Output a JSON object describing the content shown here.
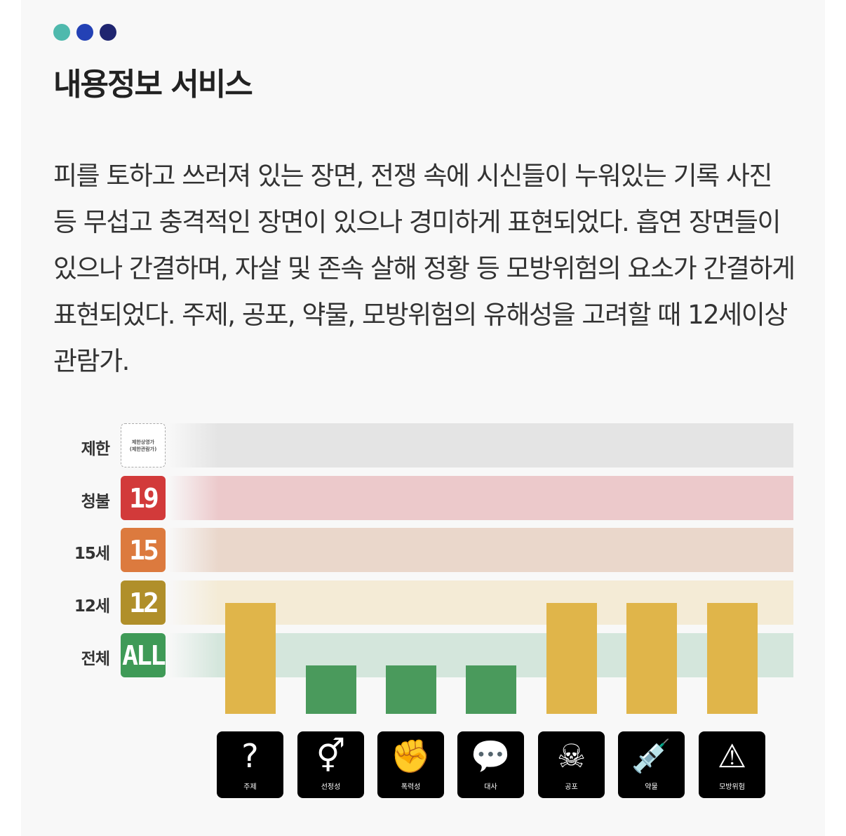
{
  "header": {
    "dot_colors": [
      "#4fb9ad",
      "#2341b5",
      "#1f2570"
    ],
    "title": "내용정보 서비스"
  },
  "description": "피를 토하고 쓰러져 있는 장면, 전쟁 속에 시신들이 누워있는 기록 사진 등 무섭고 충격적인 장면이 있으나 경미하게 표현되었다. 흡연 장면들이 있으나 간결하며, 자살 및 존속 살해 정황 등 모방위험의 요소가 간결하게 표현되었다. 주제, 공포, 약물, 모방위험의 유해성을 고려할 때 12세이상관람가.",
  "levels": [
    {
      "label": "제한",
      "badge_line1": "제한상영가",
      "badge_line2": "(제한관람가)",
      "color": "#ffffff",
      "band": "#e4e4e4"
    },
    {
      "label": "청불",
      "badge": "19",
      "color": "#d23a3a",
      "band": "#ecc9cb"
    },
    {
      "label": "15세",
      "badge": "15",
      "color": "#dc7a3e",
      "band": "#ead7cb"
    },
    {
      "label": "12세",
      "badge": "12",
      "color": "#b08f2a",
      "band": "#f4ebd6"
    },
    {
      "label": "전체",
      "badge": "ALL",
      "color": "#3f9a57",
      "band": "#d4e6dc"
    }
  ],
  "chart_data": {
    "type": "bar",
    "categories": [
      "주제",
      "선정성",
      "폭력성",
      "대사",
      "공포",
      "약물",
      "모방위험"
    ],
    "values": [
      "12세",
      "전체",
      "전체",
      "전체",
      "12세",
      "12세",
      "12세"
    ],
    "colors": {
      "12세": "#e0b54a",
      "전체": "#4a9a5c"
    }
  },
  "icons": [
    {
      "name": "theme",
      "glyph": "?",
      "label": "주제"
    },
    {
      "name": "sexuality",
      "glyph": "⚥",
      "label": "선정성"
    },
    {
      "name": "violence",
      "glyph": "✊",
      "label": "폭력성"
    },
    {
      "name": "dialogue",
      "glyph": "💬",
      "label": "대사"
    },
    {
      "name": "fear",
      "glyph": "☠",
      "label": "공포"
    },
    {
      "name": "drug",
      "glyph": "💉",
      "label": "약물"
    },
    {
      "name": "imitation",
      "glyph": "⚠",
      "label": "모방위험"
    }
  ]
}
